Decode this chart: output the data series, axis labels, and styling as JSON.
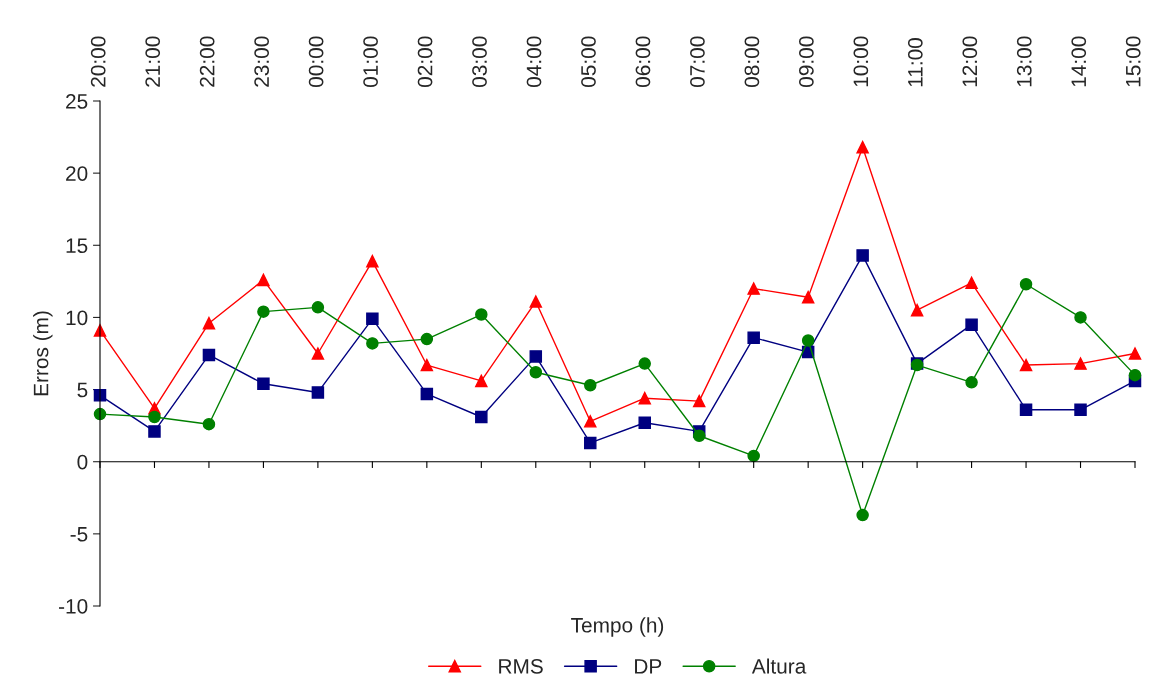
{
  "chart_data": {
    "type": "line",
    "xlabel": "Tempo (h)",
    "ylabel": "Erros (m)",
    "categories": [
      "20:00",
      "21:00",
      "22:00",
      "23:00",
      "00:00",
      "01:00",
      "02:00",
      "03:00",
      "04:00",
      "05:00",
      "06:00",
      "07:00",
      "08:00",
      "09:00",
      "10:00",
      "11:00",
      "12:00",
      "13:00",
      "14:00",
      "15:00"
    ],
    "series": [
      {
        "name": "RMS",
        "color": "#ff0000",
        "marker": "triangle",
        "values": [
          9.1,
          3.7,
          9.6,
          12.6,
          7.5,
          13.9,
          6.7,
          5.6,
          11.1,
          2.8,
          4.4,
          4.2,
          12.0,
          11.4,
          21.8,
          10.5,
          12.4,
          6.7,
          6.8,
          7.5
        ]
      },
      {
        "name": "DP",
        "color": "#000080",
        "marker": "square",
        "values": [
          4.6,
          2.1,
          7.4,
          5.4,
          4.8,
          9.9,
          4.7,
          3.1,
          7.3,
          1.3,
          2.7,
          2.1,
          8.6,
          7.6,
          14.3,
          6.8,
          9.5,
          3.6,
          3.6,
          5.6
        ]
      },
      {
        "name": "Altura",
        "color": "#008000",
        "marker": "circle",
        "values": [
          3.3,
          3.1,
          2.6,
          10.4,
          10.7,
          8.2,
          8.5,
          10.2,
          6.2,
          5.3,
          6.8,
          1.8,
          0.4,
          8.4,
          -3.7,
          6.7,
          5.5,
          12.3,
          10.0,
          6.0
        ]
      }
    ],
    "ylim": [
      -10,
      25
    ],
    "yticks": [
      -10,
      -5,
      0,
      5,
      10,
      15,
      20,
      25
    ],
    "legend": "bottom"
  }
}
